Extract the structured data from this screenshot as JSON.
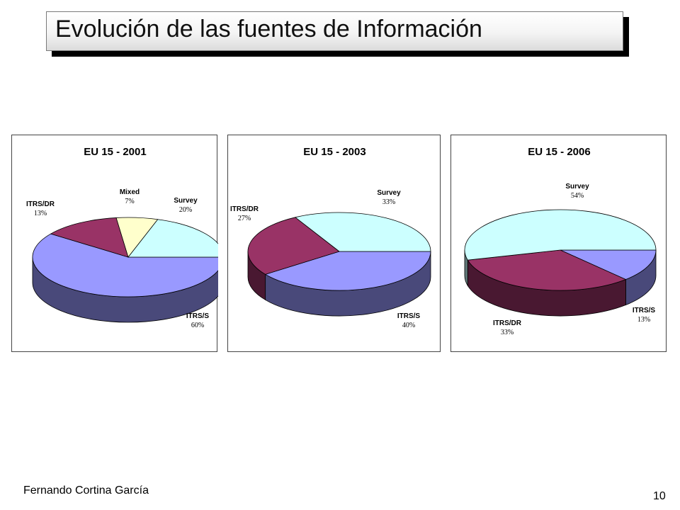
{
  "slide": {
    "title": "Evolución de las fuentes de Información",
    "footer": "Fernando Cortina García",
    "page_number": "10"
  },
  "chart_data": [
    {
      "type": "pie",
      "title": "EU 15 - 2001",
      "slices": [
        {
          "label": "Survey",
          "value": 20,
          "pct_text": "20%",
          "color": "#ccffff"
        },
        {
          "label": "ITRS/S",
          "value": 60,
          "pct_text": "60%",
          "color": "#9999ff"
        },
        {
          "label": "ITRS/DR",
          "value": 13,
          "pct_text": "13%",
          "color": "#993366"
        },
        {
          "label": "Mixed",
          "value": 7,
          "pct_text": "7%",
          "color": "#ffffcc"
        }
      ]
    },
    {
      "type": "pie",
      "title": "EU 15 - 2003",
      "slices": [
        {
          "label": "Survey",
          "value": 33,
          "pct_text": "33%",
          "color": "#ccffff"
        },
        {
          "label": "ITRS/S",
          "value": 40,
          "pct_text": "40%",
          "color": "#9999ff"
        },
        {
          "label": "ITRS/DR",
          "value": 27,
          "pct_text": "27%",
          "color": "#993366"
        }
      ]
    },
    {
      "type": "pie",
      "title": "EU 15 - 2006",
      "slices": [
        {
          "label": "Survey",
          "value": 54,
          "pct_text": "54%",
          "color": "#ccffff"
        },
        {
          "label": "ITRS/S",
          "value": 13,
          "pct_text": "13%",
          "color": "#9999ff"
        },
        {
          "label": "ITRS/DR",
          "value": 33,
          "pct_text": "33%",
          "color": "#993366"
        }
      ]
    }
  ]
}
